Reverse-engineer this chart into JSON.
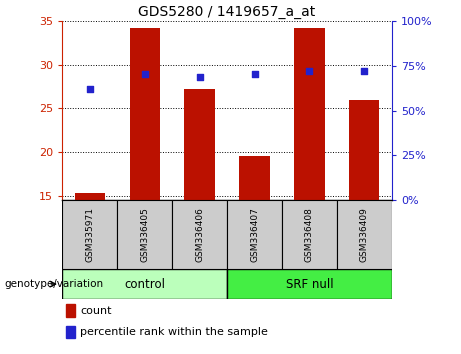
{
  "title": "GDS5280 / 1419657_a_at",
  "samples": [
    "GSM335971",
    "GSM336405",
    "GSM336406",
    "GSM336407",
    "GSM336408",
    "GSM336409"
  ],
  "counts": [
    15.3,
    34.2,
    27.2,
    19.5,
    34.2,
    26.0
  ],
  "percentile_ranks_left": [
    27.2,
    29.0,
    28.6,
    29.0,
    29.3,
    29.3
  ],
  "ylim_left": [
    14.5,
    35.0
  ],
  "ylim_right": [
    0,
    100
  ],
  "yticks_left": [
    15,
    20,
    25,
    30,
    35
  ],
  "yticks_right": [
    0,
    25,
    50,
    75,
    100
  ],
  "bar_color": "#bb1100",
  "dot_color": "#2222cc",
  "control_label": "control",
  "srf_label": "SRF null",
  "group_label": "genotype/variation",
  "legend_count": "count",
  "legend_percentile": "percentile rank within the sample",
  "control_color": "#bbffbb",
  "srf_color": "#44ee44",
  "bar_width": 0.55,
  "left_axis_color": "#cc2200",
  "right_axis_color": "#2222cc",
  "sample_box_color": "#cccccc",
  "bg_color": "#ffffff"
}
